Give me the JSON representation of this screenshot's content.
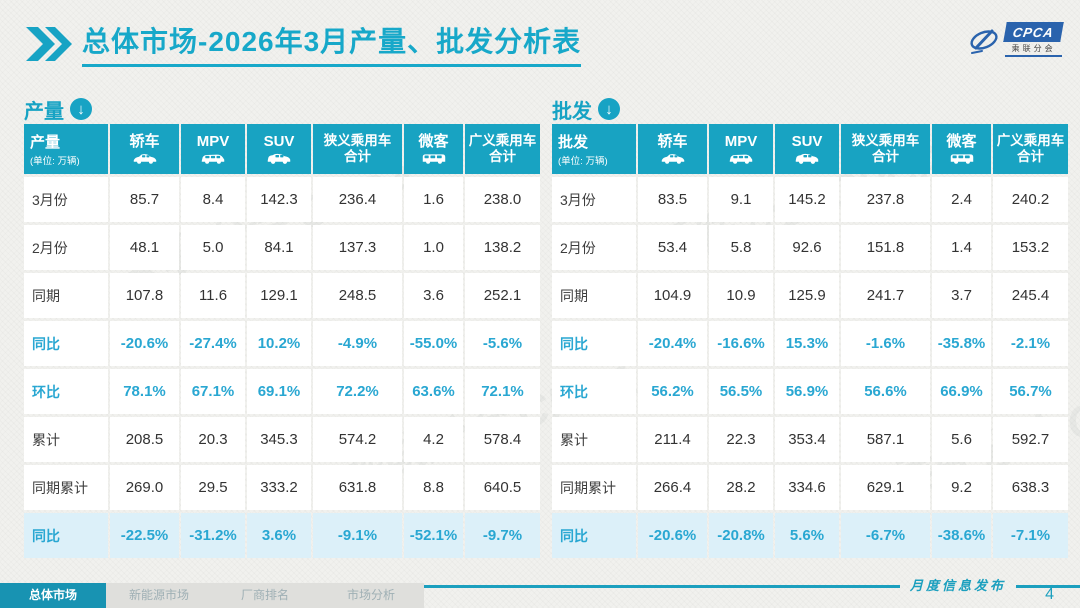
{
  "page": {
    "accent": "#18a3c2",
    "highlight_row_bg": "#dcf0f9",
    "percent_text": "#29a7d2"
  },
  "header": {
    "title": "总体市场-2026年3月产量、批发分析表",
    "logo": {
      "brand": "CPCA",
      "brand_sub": "乘联分会"
    }
  },
  "tables": [
    {
      "id": "production",
      "section_label": "产量",
      "corner": {
        "label": "产量",
        "unit": "(单位: 万辆)"
      },
      "columns": [
        {
          "label": "轿车",
          "icon": "sedan-car-icon"
        },
        {
          "label": "MPV",
          "icon": "mpv-car-icon"
        },
        {
          "label": "SUV",
          "icon": "suv-car-icon"
        },
        {
          "label": "狭义乘用车",
          "label2": "合计"
        },
        {
          "label": "微客",
          "icon": "microvan-icon"
        },
        {
          "label": "广义乘用车",
          "label2": "合计"
        }
      ],
      "rows": [
        {
          "label": "3月份",
          "style": "normal",
          "values": [
            "85.7",
            "8.4",
            "142.3",
            "236.4",
            "1.6",
            "238.0"
          ]
        },
        {
          "label": "2月份",
          "style": "normal",
          "values": [
            "48.1",
            "5.0",
            "84.1",
            "137.3",
            "1.0",
            "138.2"
          ]
        },
        {
          "label": "同期",
          "style": "normal",
          "values": [
            "107.8",
            "11.6",
            "129.1",
            "248.5",
            "3.6",
            "252.1"
          ]
        },
        {
          "label": "同比",
          "style": "percent",
          "values": [
            "-20.6%",
            "-27.4%",
            "10.2%",
            "-4.9%",
            "-55.0%",
            "-5.6%"
          ]
        },
        {
          "label": "环比",
          "style": "percent",
          "values": [
            "78.1%",
            "67.1%",
            "69.1%",
            "72.2%",
            "63.6%",
            "72.1%"
          ]
        },
        {
          "label": "累计",
          "style": "normal",
          "values": [
            "208.5",
            "20.3",
            "345.3",
            "574.2",
            "4.2",
            "578.4"
          ]
        },
        {
          "label": "同期累计",
          "style": "normal",
          "values": [
            "269.0",
            "29.5",
            "333.2",
            "631.8",
            "8.8",
            "640.5"
          ]
        },
        {
          "label": "同比",
          "style": "percent-highlight",
          "values": [
            "-22.5%",
            "-31.2%",
            "3.6%",
            "-9.1%",
            "-52.1%",
            "-9.7%"
          ]
        }
      ]
    },
    {
      "id": "wholesale",
      "section_label": "批发",
      "corner": {
        "label": "批发",
        "unit": "(单位: 万辆)"
      },
      "columns": [
        {
          "label": "轿车",
          "icon": "sedan-car-icon"
        },
        {
          "label": "MPV",
          "icon": "mpv-car-icon"
        },
        {
          "label": "SUV",
          "icon": "suv-car-icon"
        },
        {
          "label": "狭义乘用车",
          "label2": "合计"
        },
        {
          "label": "微客",
          "icon": "microvan-icon"
        },
        {
          "label": "广义乘用车",
          "label2": "合计"
        }
      ],
      "rows": [
        {
          "label": "3月份",
          "style": "normal",
          "values": [
            "83.5",
            "9.1",
            "145.2",
            "237.8",
            "2.4",
            "240.2"
          ]
        },
        {
          "label": "2月份",
          "style": "normal",
          "values": [
            "53.4",
            "5.8",
            "92.6",
            "151.8",
            "1.4",
            "153.2"
          ]
        },
        {
          "label": "同期",
          "style": "normal",
          "values": [
            "104.9",
            "10.9",
            "125.9",
            "241.7",
            "3.7",
            "245.4"
          ]
        },
        {
          "label": "同比",
          "style": "percent",
          "values": [
            "-20.4%",
            "-16.6%",
            "15.3%",
            "-1.6%",
            "-35.8%",
            "-2.1%"
          ]
        },
        {
          "label": "环比",
          "style": "percent",
          "values": [
            "56.2%",
            "56.5%",
            "56.9%",
            "56.6%",
            "66.9%",
            "56.7%"
          ]
        },
        {
          "label": "累计",
          "style": "normal",
          "values": [
            "211.4",
            "22.3",
            "353.4",
            "587.1",
            "5.6",
            "592.7"
          ]
        },
        {
          "label": "同期累计",
          "style": "normal",
          "values": [
            "266.4",
            "28.2",
            "334.6",
            "629.1",
            "9.2",
            "638.3"
          ]
        },
        {
          "label": "同比",
          "style": "percent-highlight",
          "values": [
            "-20.6%",
            "-20.8%",
            "5.6%",
            "-6.7%",
            "-38.6%",
            "-7.1%"
          ]
        }
      ]
    }
  ],
  "footer": {
    "tabs": [
      {
        "label": "总体市场",
        "active": true
      },
      {
        "label": "新能源市场",
        "active": false
      },
      {
        "label": "厂商排名",
        "active": false
      },
      {
        "label": "市场分析",
        "active": false
      }
    ],
    "ribbon_text": "月度信息发布",
    "page_number": "4"
  },
  "watermark_text": "乘联分会 CPCA"
}
